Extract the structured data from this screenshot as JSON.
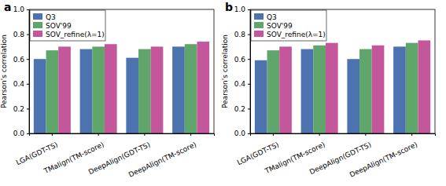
{
  "chart_data": [
    {
      "type": "bar",
      "title": "a",
      "y_label": "Pearson's correlation",
      "categories": [
        "LGA(GDT-TS)",
        "TMalign(TM-score)",
        "DeepAlign(GDT-TS)",
        "DeepAlign(TM-score)"
      ],
      "series": [
        {
          "name": "Q3",
          "color": "#4c72b0",
          "values": [
            0.6,
            0.68,
            0.61,
            0.7
          ]
        },
        {
          "name": "SOV'99",
          "color": "#5fa56c",
          "values": [
            0.67,
            0.7,
            0.68,
            0.72
          ]
        },
        {
          "name": "SOV_refine(λ=1)",
          "color": "#c4579c",
          "values": [
            0.7,
            0.72,
            0.7,
            0.74
          ]
        }
      ],
      "ylim": [
        0,
        1.0
      ],
      "yticks": [
        {
          "value": 0,
          "label": "0.0"
        },
        {
          "value": 0.2,
          "label": "0.2"
        },
        {
          "value": 0.4,
          "label": "0.4"
        },
        {
          "value": 0.6,
          "label": "0.6"
        },
        {
          "value": 0.8,
          "label": "0.8"
        },
        {
          "value": 1.0,
          "label": "1.0"
        }
      ],
      "legend": "upper left",
      "grid": false
    },
    {
      "type": "bar",
      "title": "b",
      "y_label": "Pearson's correlation",
      "categories": [
        "LGA(GDT-TS)",
        "TMalign(TM-score)",
        "DeepAlign(GDT-TS)",
        "DeepAlign(TM-score)"
      ],
      "series": [
        {
          "name": "Q3",
          "color": "#4c72b0",
          "values": [
            0.59,
            0.68,
            0.6,
            0.7
          ]
        },
        {
          "name": "SOV'99",
          "color": "#5fa56c",
          "values": [
            0.67,
            0.71,
            0.68,
            0.73
          ]
        },
        {
          "name": "SOV_refine(λ=1)",
          "color": "#c4579c",
          "values": [
            0.7,
            0.73,
            0.71,
            0.75
          ]
        }
      ],
      "ylim": [
        0,
        1.0
      ],
      "yticks": [
        {
          "value": 0,
          "label": "0.0"
        },
        {
          "value": 0.2,
          "label": "0.2"
        },
        {
          "value": 0.4,
          "label": "0.4"
        },
        {
          "value": 0.6,
          "label": "0.6"
        },
        {
          "value": 0.8,
          "label": "0.8"
        },
        {
          "value": 1.0,
          "label": "1.0"
        }
      ],
      "legend": "upper left",
      "grid": false
    }
  ]
}
